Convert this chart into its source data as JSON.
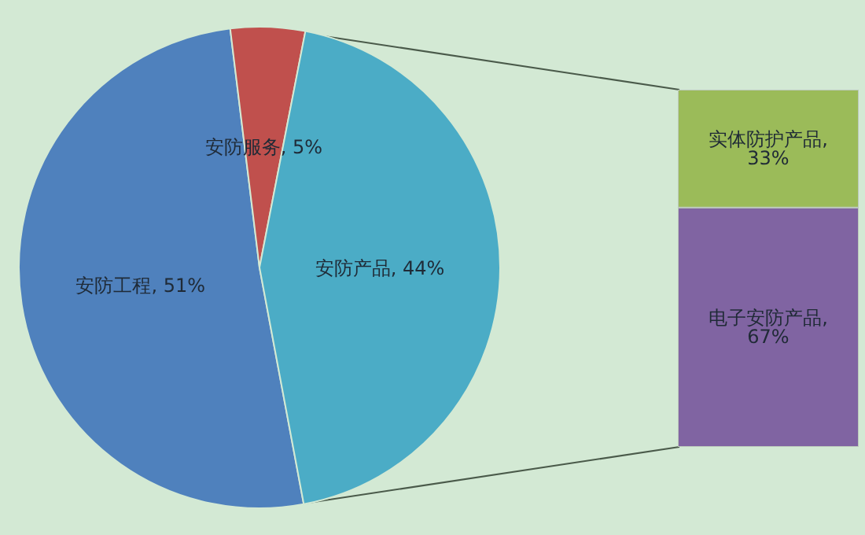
{
  "chart_data": [
    {
      "type": "pie",
      "categories": [
        "安防工程",
        "安防服务",
        "安防产品"
      ],
      "values": [
        51,
        5,
        44
      ],
      "colors": [
        "#4f81bd",
        "#c0504d",
        "#4bacc6"
      ],
      "value_labels": [
        "51%",
        "5%",
        "44%"
      ]
    },
    {
      "type": "bar",
      "stacked": true,
      "categories": [
        null
      ],
      "series": [
        {
          "color": "#8064a2",
          "values": [
            67
          ],
          "value_labels": [
            "电子安防产品, 67%"
          ]
        },
        {
          "color": "#9bbb59",
          "values": [
            33
          ],
          "value_labels": [
            "实体防护产品, 33%"
          ]
        }
      ]
    }
  ]
}
